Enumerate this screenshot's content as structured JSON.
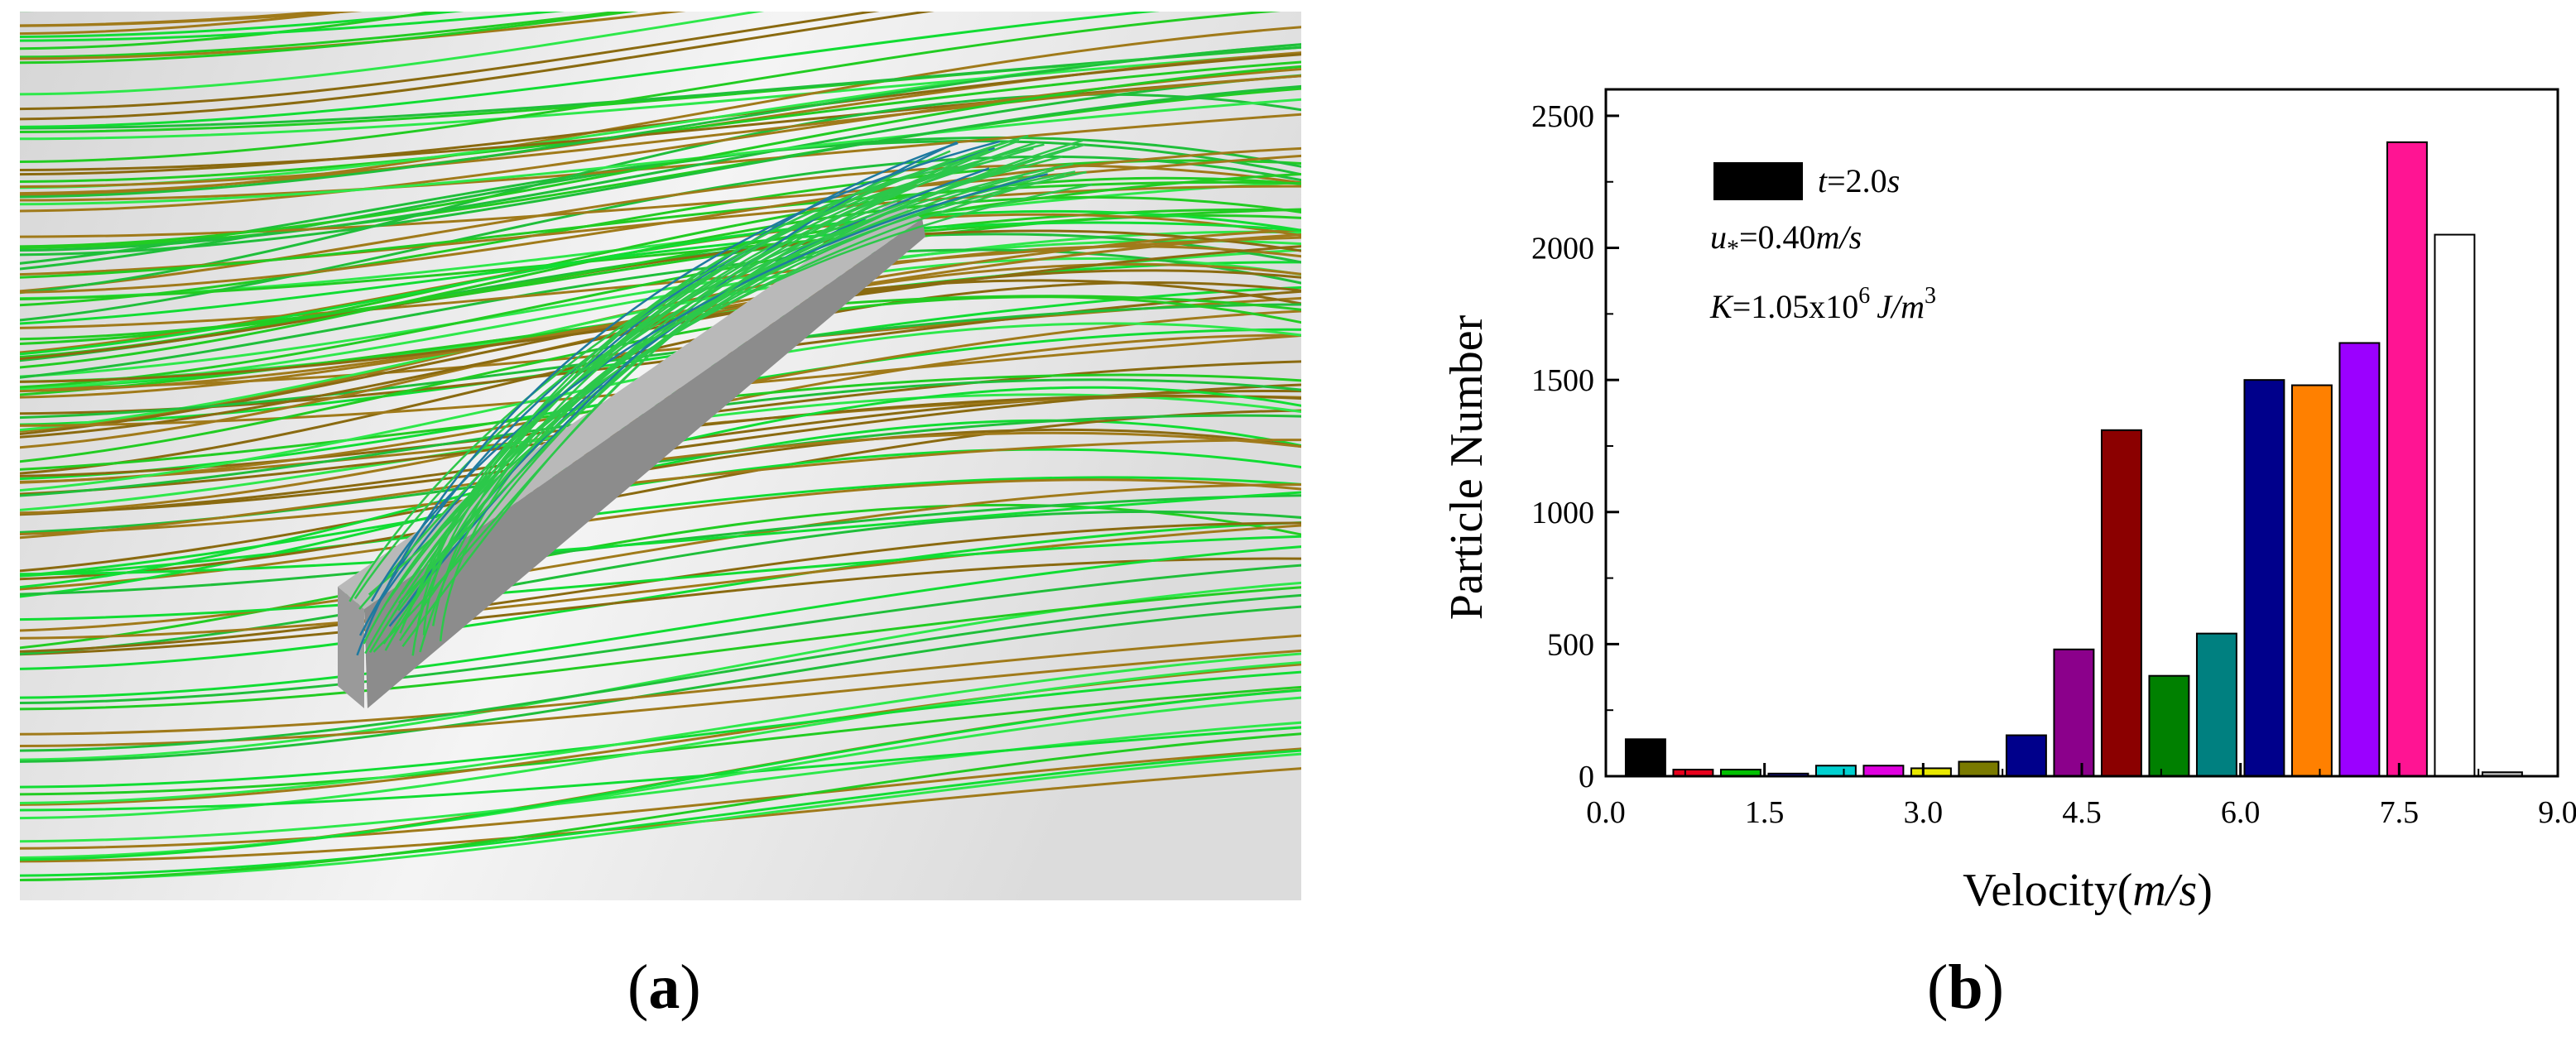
{
  "panels": {
    "a": {
      "label_open": "(",
      "label_letter": "a",
      "label_close": ")"
    },
    "b": {
      "label_open": "(",
      "label_letter": "b",
      "label_close": ")"
    }
  },
  "chart_data": {
    "type": "bar",
    "title": "",
    "xlabel": "Velocity(m/s)",
    "ylabel": "Particle Number",
    "xlim": [
      0.0,
      9.0
    ],
    "ylim": [
      0,
      2600
    ],
    "xticks": [
      "0.0",
      "1.5",
      "3.0",
      "4.5",
      "6.0",
      "7.5",
      "9.0"
    ],
    "yticks": [
      "0",
      "500",
      "1000",
      "1500",
      "2000",
      "2500"
    ],
    "bar_width": 0.375,
    "series": [
      {
        "x": 0.375,
        "values": [
          140
        ]
      },
      {
        "x": 0.825,
        "values": [
          25
        ]
      },
      {
        "x": 1.275,
        "values": [
          25
        ]
      },
      {
        "x": 1.725,
        "values": [
          10
        ]
      },
      {
        "x": 2.175,
        "values": [
          40
        ]
      },
      {
        "x": 2.625,
        "values": [
          40
        ]
      },
      {
        "x": 3.075,
        "values": [
          30
        ]
      },
      {
        "x": 3.525,
        "values": [
          55
        ]
      },
      {
        "x": 3.975,
        "values": [
          155
        ]
      },
      {
        "x": 4.425,
        "values": [
          480
        ]
      },
      {
        "x": 4.875,
        "values": [
          1310
        ]
      },
      {
        "x": 5.325,
        "values": [
          380
        ]
      },
      {
        "x": 5.775,
        "values": [
          540
        ]
      },
      {
        "x": 6.225,
        "values": [
          1500
        ]
      },
      {
        "x": 6.675,
        "values": [
          1480
        ]
      },
      {
        "x": 7.125,
        "values": [
          1640
        ]
      },
      {
        "x": 7.575,
        "values": [
          2400
        ]
      },
      {
        "x": 8.025,
        "values": [
          2050
        ]
      },
      {
        "x": 8.475,
        "values": [
          15
        ]
      }
    ],
    "bar_colors": [
      "#000000",
      "#e8001c",
      "#00c000",
      "#1a1acc",
      "#00d0d0",
      "#e000e0",
      "#e8e800",
      "#7a7a00",
      "#00008b",
      "#8b008b",
      "#8b0000",
      "#008000",
      "#008080",
      "#00008b",
      "#ff8000",
      "#9b00ff",
      "#ff1493",
      "#ffffff",
      "#c0c0c0"
    ],
    "legend": {
      "placement": "top-left",
      "entry_var": "t",
      "entry_rest": "=2.0",
      "entry_unit": "s",
      "swatch_color": "#000000"
    },
    "annotations": {
      "ustar_var": "u",
      "ustar_sub": "*",
      "ustar_rest": "=0.40",
      "ustar_unit": "m/s",
      "k_var": "K",
      "k_mid": "=1.05x10",
      "k_exp": "6",
      "k_unit": "J/m",
      "k_unit_exp": "3"
    }
  }
}
